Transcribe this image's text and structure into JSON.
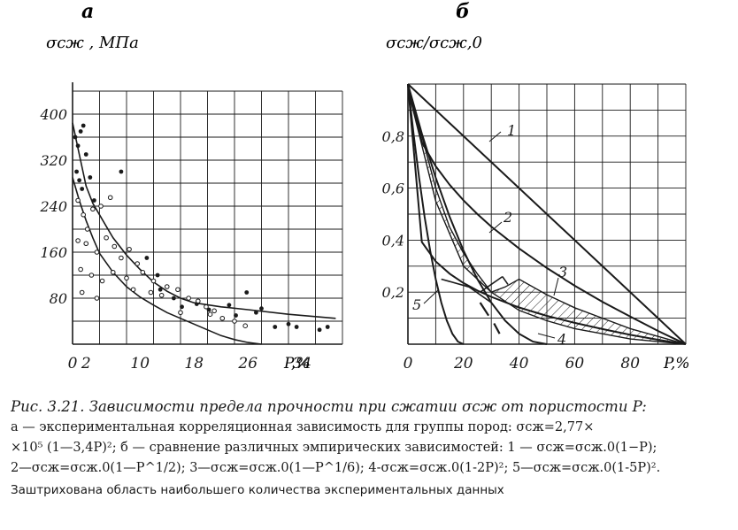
{
  "chart_data": [
    {
      "panel": "а",
      "type": "scatter",
      "ylabel": "σсж , МПа",
      "xlabel": "P,%",
      "xticks": [
        0,
        2,
        10,
        18,
        26,
        34
      ],
      "xtick_labels": [
        "0",
        "2",
        "10",
        "18",
        "26",
        "34"
      ],
      "yticks": [
        80,
        160,
        240,
        320,
        400
      ],
      "ytick_labels": [
        "80",
        "160",
        "240",
        "320",
        "400"
      ],
      "xlim": [
        0,
        40
      ],
      "ylim": [
        0,
        440
      ],
      "grid": true,
      "points_filled": [
        [
          0.4,
          360
        ],
        [
          0.8,
          345
        ],
        [
          1.2,
          370
        ],
        [
          1.6,
          380
        ],
        [
          0.6,
          300
        ],
        [
          1.0,
          285
        ],
        [
          1.4,
          270
        ],
        [
          2.0,
          330
        ],
        [
          2.6,
          290
        ],
        [
          3.2,
          250
        ],
        [
          7.2,
          300
        ],
        [
          11.0,
          150
        ],
        [
          12.6,
          120
        ],
        [
          13.0,
          95
        ],
        [
          15.0,
          80
        ],
        [
          16.2,
          65
        ],
        [
          18.4,
          70
        ],
        [
          20.2,
          60
        ],
        [
          23.2,
          68
        ],
        [
          24.2,
          50
        ],
        [
          25.8,
          90
        ],
        [
          27.2,
          55
        ],
        [
          28.0,
          62
        ],
        [
          30.0,
          30
        ],
        [
          32.0,
          35
        ],
        [
          33.2,
          30
        ],
        [
          36.6,
          25
        ],
        [
          37.8,
          30
        ]
      ],
      "points_open": [
        [
          0.8,
          250
        ],
        [
          1.6,
          225
        ],
        [
          2.2,
          200
        ],
        [
          3.0,
          235
        ],
        [
          4.2,
          240
        ],
        [
          5.6,
          255
        ],
        [
          0.8,
          180
        ],
        [
          2.0,
          175
        ],
        [
          3.6,
          160
        ],
        [
          5.0,
          185
        ],
        [
          6.2,
          170
        ],
        [
          7.2,
          150
        ],
        [
          8.4,
          165
        ],
        [
          9.6,
          140
        ],
        [
          1.2,
          130
        ],
        [
          2.8,
          120
        ],
        [
          4.4,
          110
        ],
        [
          6.0,
          125
        ],
        [
          8.0,
          115
        ],
        [
          10.4,
          125
        ],
        [
          12.0,
          110
        ],
        [
          14.0,
          100
        ],
        [
          9.0,
          95
        ],
        [
          11.6,
          90
        ],
        [
          13.2,
          85
        ],
        [
          15.6,
          95
        ],
        [
          17.2,
          80
        ],
        [
          18.6,
          75
        ],
        [
          19.8,
          65
        ],
        [
          21.0,
          58
        ],
        [
          16.0,
          55
        ],
        [
          22.2,
          45
        ],
        [
          24.0,
          40
        ],
        [
          25.6,
          32
        ],
        [
          1.4,
          90
        ],
        [
          3.6,
          80
        ],
        [
          20.4,
          52
        ]
      ],
      "series": [
        {
          "name": "",
          "x": [
            0,
            1,
            2,
            3,
            4,
            5,
            6,
            8,
            10,
            12,
            14,
            16,
            18,
            22,
            26,
            32,
            39
          ],
          "y": [
            385,
            330,
            275,
            245,
            225,
            205,
            185,
            155,
            130,
            108,
            92,
            80,
            72,
            65,
            60,
            52,
            45
          ]
        },
        {
          "name": "",
          "x": [
            0,
            1,
            2,
            3,
            4,
            6,
            8,
            10,
            12,
            14,
            16,
            18,
            20,
            22,
            24,
            26,
            28
          ],
          "y": [
            290,
            250,
            215,
            185,
            158,
            125,
            100,
            82,
            68,
            55,
            45,
            35,
            25,
            15,
            8,
            3,
            0
          ]
        }
      ]
    },
    {
      "panel": "б",
      "type": "line",
      "ylabel": "σсж/σсж,0",
      "xlabel": "P,%",
      "xticks": [
        0,
        20,
        40,
        60,
        80
      ],
      "xtick_labels": [
        "0",
        "20",
        "40",
        "60",
        "80"
      ],
      "yticks": [
        0.2,
        0.4,
        0.6,
        0.8
      ],
      "ytick_labels": [
        "0,2",
        "0,4",
        "0,6",
        "0,8"
      ],
      "xlim": [
        0,
        100
      ],
      "ylim": [
        0,
        1.0
      ],
      "grid": true,
      "series": [
        {
          "name": "1",
          "x": [
            0,
            100
          ],
          "y": [
            1.0,
            0.0
          ]
        },
        {
          "name": "2",
          "x": [
            0,
            5,
            10,
            15,
            20,
            25,
            30,
            40,
            50,
            60,
            70,
            80,
            90,
            100
          ],
          "y": [
            1.0,
            0.776,
            0.684,
            0.613,
            0.553,
            0.5,
            0.452,
            0.368,
            0.293,
            0.225,
            0.163,
            0.106,
            0.051,
            0.0
          ]
        },
        {
          "name": "3",
          "x": [
            0,
            5,
            10,
            15,
            20,
            25,
            30,
            40,
            50,
            60,
            70,
            80,
            90,
            100
          ],
          "y": [
            1.0,
            0.393,
            0.318,
            0.271,
            0.235,
            0.206,
            0.182,
            0.141,
            0.109,
            0.082,
            0.058,
            0.036,
            0.017,
            0.0
          ]
        },
        {
          "name": "4",
          "x": [
            0,
            5,
            10,
            15,
            20,
            25,
            30,
            35,
            40,
            45,
            50
          ],
          "y": [
            1.0,
            0.81,
            0.64,
            0.49,
            0.36,
            0.25,
            0.16,
            0.09,
            0.04,
            0.01,
            0.0
          ]
        },
        {
          "name": "5",
          "x": [
            0,
            2,
            4,
            6,
            8,
            10,
            12,
            14,
            16,
            18,
            20
          ],
          "y": [
            1.0,
            0.81,
            0.64,
            0.49,
            0.36,
            0.25,
            0.16,
            0.09,
            0.04,
            0.01,
            0.0
          ]
        }
      ],
      "hatched_region": {
        "upper_x": [
          0,
          5,
          10,
          15,
          20,
          25,
          30,
          35,
          40,
          50,
          60,
          70,
          80,
          90,
          100
        ],
        "upper_y": [
          0.98,
          0.8,
          0.6,
          0.45,
          0.35,
          0.27,
          0.2,
          0.22,
          0.25,
          0.19,
          0.14,
          0.1,
          0.06,
          0.03,
          0.0
        ],
        "lower_x": [
          100,
          90,
          80,
          70,
          60,
          50,
          40,
          30,
          20,
          10,
          0
        ],
        "lower_y": [
          0.0,
          0.01,
          0.02,
          0.04,
          0.06,
          0.09,
          0.13,
          0.2,
          0.3,
          0.55,
          0.98
        ]
      },
      "extra_lines": [
        {
          "x": [
            12,
            22
          ],
          "y": [
            0.25,
            0.22
          ]
        },
        {
          "x": [
            22,
            30
          ],
          "y": [
            0.22,
            0.16
          ]
        },
        {
          "x": [
            26,
            34
          ],
          "y": [
            0.2,
            0.26
          ]
        },
        {
          "x": [
            34,
            36
          ],
          "y": [
            0.26,
            0.23
          ]
        }
      ],
      "dashed_segments": [
        {
          "x": [
            26,
            29
          ],
          "y": [
            0.16,
            0.11
          ]
        },
        {
          "x": [
            31,
            33
          ],
          "y": [
            0.08,
            0.04
          ]
        }
      ]
    }
  ],
  "figure": {
    "panel_a_letter": "а",
    "panel_b_letter": "б",
    "panel_a_xlabel": "P,%",
    "panel_b_xlabel": "P,%"
  },
  "caption": {
    "line1": "Рис. 3.21. Зависимости предела прочности при сжатии σсж от пористости P:",
    "line2": "а — экспериментальная корреляционная  зависимость для группы пород:  σсж=2,77×",
    "line3": "×10⁵ (1—3,4P)²; б — сравнение различных эмпирических зависимостей: 1 — σсж=σсж.0(1−P);",
    "line4": "2—σсж=σсж.0(1—P^1/2); 3—σсж=σсж.0(1—P^1/6); 4-σсж=σсж.0(1-2P)²; 5—σсж=σсж.0(1-5P)².",
    "line5": "Заштрихована область наибольшего количества экспериментальных данных"
  },
  "colors": {
    "ink": "#1a1a1a",
    "background": "#ffffff"
  }
}
